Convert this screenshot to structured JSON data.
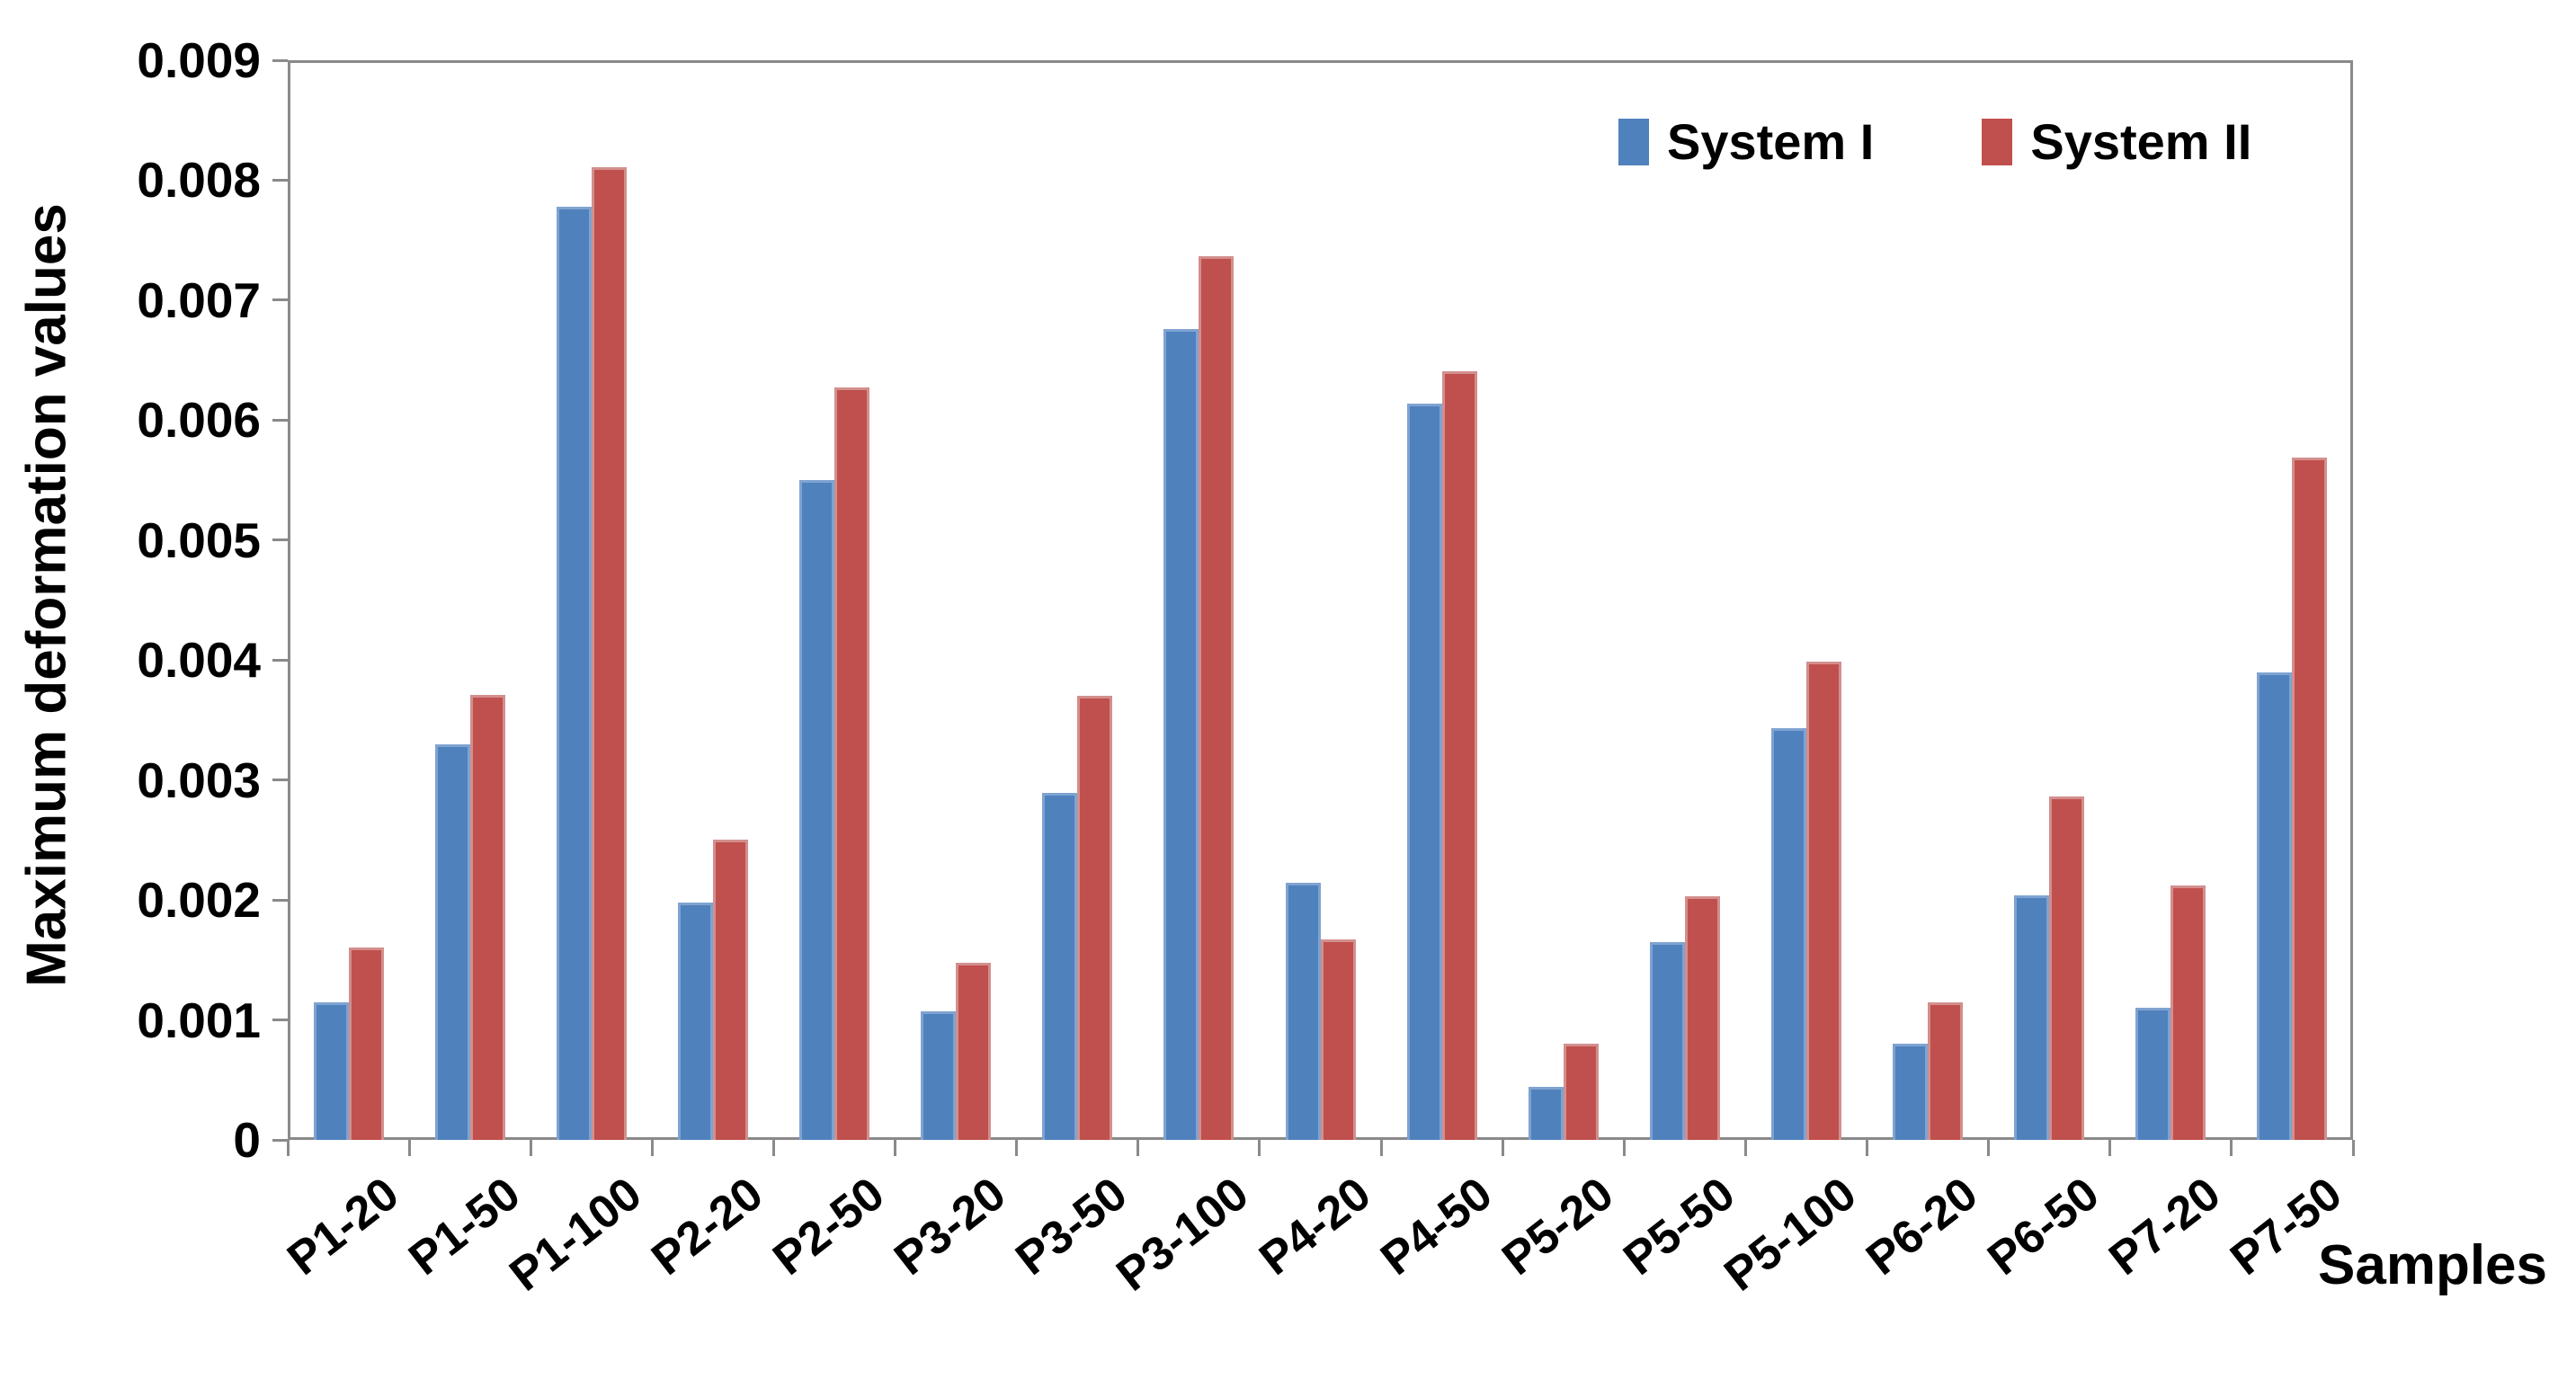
{
  "chart_data": {
    "type": "bar",
    "title": "",
    "xlabel": "Samples",
    "ylabel": "Maximum deformation values",
    "categories": [
      "P1-20",
      "P1-50",
      "P1-100",
      "P2-20",
      "P2-50",
      "P3-20",
      "P3-50",
      "P3-100",
      "P4-20",
      "P4-50",
      "P5-20",
      "P5-50",
      "P5-100",
      "P6-20",
      "P6-50",
      "P7-20",
      "P7-50"
    ],
    "series": [
      {
        "name": "System I",
        "color": "#4f81bd",
        "edge_color": "#7fa3d1",
        "values": [
          0.00115,
          0.0033,
          0.00778,
          0.00198,
          0.0055,
          0.00107,
          0.00289,
          0.00676,
          0.00214,
          0.00614,
          0.00044,
          0.00165,
          0.00343,
          0.0008,
          0.00204,
          0.0011,
          0.0039
        ]
      },
      {
        "name": "System II",
        "color": "#c0504d",
        "edge_color": "#d28f8d",
        "values": [
          0.0016,
          0.00371,
          0.00811,
          0.0025,
          0.00627,
          0.00148,
          0.0037,
          0.00737,
          0.00167,
          0.00641,
          0.0008,
          0.00203,
          0.00399,
          0.00115,
          0.00286,
          0.00212,
          0.00569
        ]
      }
    ],
    "ylim": [
      0,
      0.009
    ],
    "ytick_step": 0.001,
    "ytick_labels": [
      "0",
      "0.001",
      "0.002",
      "0.003",
      "0.004",
      "0.005",
      "0.006",
      "0.007",
      "0.008",
      "0.009"
    ],
    "grid": false,
    "legend_position": "top-right-inside",
    "axis_color": "#8a8a8a",
    "text_color": "#000000"
  }
}
